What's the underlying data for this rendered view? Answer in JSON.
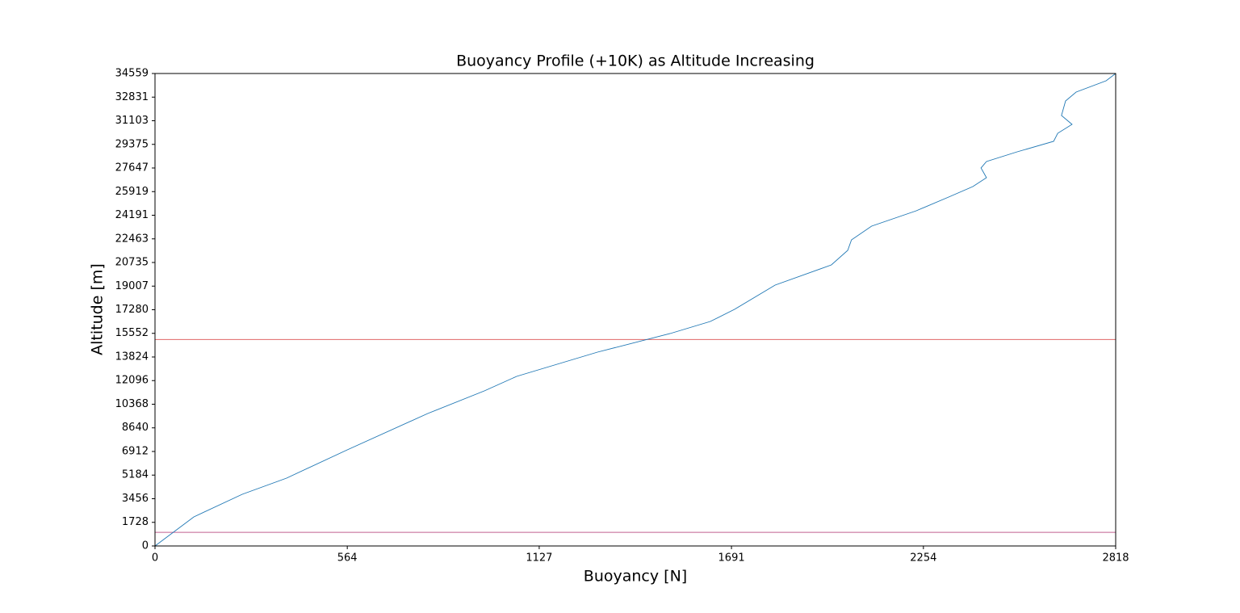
{
  "chart_data": {
    "type": "line",
    "title": "Buoyancy Profile (+10K) as Altitude Increasing",
    "x_label": "Buoyancy [N]",
    "y_label": "Altitude [m]",
    "x": [
      0,
      114,
      256,
      386,
      564,
      800,
      966,
      1061,
      1298,
      1511,
      1629,
      1700,
      1819,
      1984,
      2032,
      2043,
      2102,
      2233,
      2328,
      2399,
      2439,
      2423,
      2439,
      2529,
      2636,
      2648,
      2690,
      2659,
      2671,
      2702,
      2790,
      2818
    ],
    "values": [
      0,
      2127,
      3781,
      4962,
      7030,
      9688,
      11342,
      12406,
      14178,
      15537,
      16423,
      17309,
      19081,
      20558,
      21622,
      22390,
      23394,
      24516,
      25521,
      26289,
      26939,
      27648,
      28120,
      28829,
      29597,
      30187,
      30837,
      31487,
      32550,
      33200,
      34027,
      34559
    ],
    "color": "#1f77b4",
    "hlines": [
      {
        "value": 15100,
        "color": "#e06666"
      },
      {
        "value": 1000,
        "color": "#c06090"
      }
    ],
    "xlim": [
      0,
      2818
    ],
    "ylim": [
      0,
      34559
    ],
    "xticks": [
      0,
      564,
      1127,
      1691,
      2254,
      2818
    ],
    "yticks": [
      0,
      1728,
      3456,
      5184,
      6912,
      8640,
      10368,
      12096,
      13824,
      15552,
      17280,
      19007,
      20735,
      22463,
      24191,
      25919,
      27647,
      29375,
      31103,
      32831,
      34559
    ]
  }
}
